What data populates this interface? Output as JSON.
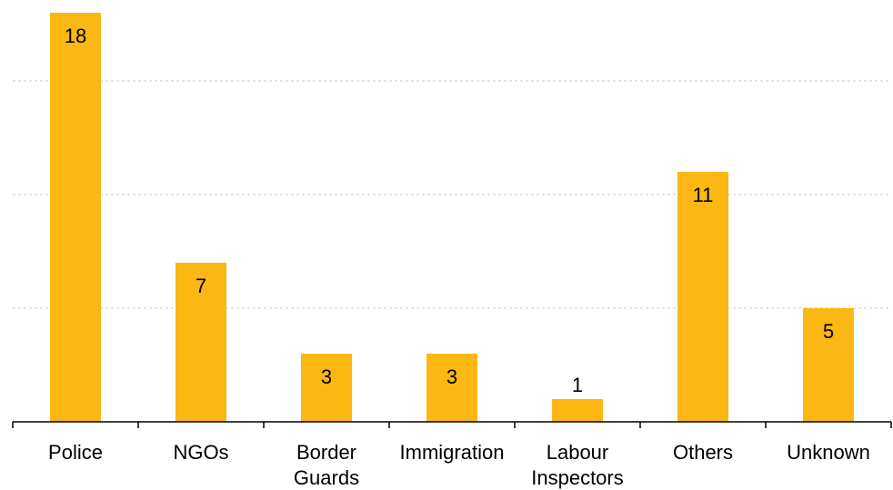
{
  "chart_data": {
    "type": "bar",
    "categories": [
      "Police",
      "NGOs",
      "Border Guards",
      "Immigration",
      "Labour Inspectors",
      "Others",
      "Unknown"
    ],
    "category_lines": [
      [
        "Police"
      ],
      [
        "NGOs"
      ],
      [
        "Border",
        "Guards"
      ],
      [
        "Immigration"
      ],
      [
        "Labour",
        "Inspectors"
      ],
      [
        "Others"
      ],
      [
        "Unknown"
      ]
    ],
    "values": [
      18,
      7,
      3,
      3,
      1,
      11,
      5
    ],
    "title": "",
    "xlabel": "",
    "ylabel": "",
    "ylim": [
      0,
      18
    ],
    "grid_lines": [
      5,
      10,
      15
    ],
    "grid": true,
    "bar_color": "#FBB714",
    "legend": "none"
  }
}
